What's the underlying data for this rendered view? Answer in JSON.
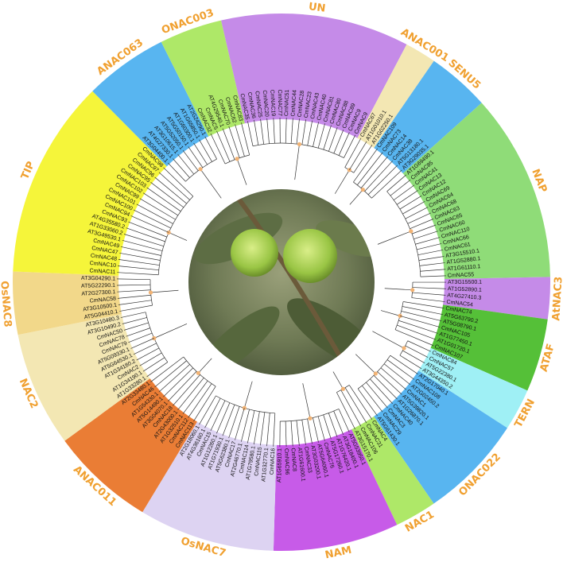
{
  "figure": {
    "center_photo": "chestnut-burrs-photo",
    "subfamilies": [
      {
        "name": "UN",
        "color": "#c58be8",
        "leaves": [
          "CmNAC35",
          "CmNAC36",
          "CmNAC25",
          "CmNAC20",
          "CmNAC19",
          "CmNAC77",
          "CmNAC51",
          "CmNAC44",
          "CmNAC28",
          "CmNAC23",
          "CmNAC43",
          "CmNAC40",
          "CmNAC81",
          "CmNAC80",
          "CmNAC88",
          "CmNAC89",
          "CmNAC9",
          "CmNAC9"
        ]
      },
      {
        "name": "ANAC001",
        "color": "#f3e7b3",
        "leaves": [
          "CmNAC67",
          "AT1G01010.1",
          "AT1G02250.1"
        ]
      },
      {
        "name": "SENU5",
        "color": "#58b5f0",
        "leaves": [
          "CmNAC109",
          "CmNAC73",
          "CmNAC14",
          "CmNAC38",
          "AT5G13180.1",
          "AT3G29035.1"
        ]
      },
      {
        "name": "NAP",
        "color": "#8fdc78",
        "leaves": [
          "AT1G69490.1",
          "CmNAC85",
          "CmNAC41",
          "CmNAC13",
          "CmNAC12",
          "CmNAC69",
          "CmNAC64",
          "CmNAC68",
          "CmNAC63",
          "CmNAC65",
          "CmNAC60",
          "CmNAC110",
          "CmNAC66",
          "CmNAC61",
          "AT3G15510.1",
          "AT1G52880.1",
          "AT1G61110.1",
          "CmNAC55"
        ]
      },
      {
        "name": "AtNAC3",
        "color": "#c58be8",
        "leaves": [
          "AT3G15500.1",
          "AT1G52890.1",
          "AT4G27410.3",
          "CmNAC54"
        ]
      },
      {
        "name": "ATAF",
        "color": "#55c038",
        "leaves": [
          "CmNAC74",
          "AT5G63790.2",
          "AT5G08790.1",
          "CmNAC105",
          "AT1G77450.1",
          "AT1G01720.1",
          "CmNAC107"
        ]
      },
      {
        "name": "TERN",
        "color": "#9ff0f5",
        "leaves": [
          "CmNAC84",
          "CmNAC57",
          "AT5G22380.1",
          "AT3G44350.2"
        ]
      },
      {
        "name": "ONAC022",
        "color": "#58b5f0",
        "leaves": [
          "AT2G17040.1",
          "CmNAC108",
          "AT2G02450.2",
          "CmNAC1",
          "AT5G39820.1",
          "AT1G26870.1",
          "CmNAC40",
          "CmNAC3",
          "CmNAC29",
          "AT5G61430.1"
        ]
      },
      {
        "name": "NAC1",
        "color": "#aee868",
        "leaves": [
          "CmNAC4",
          "CmNAC31",
          "CmNAC106",
          "AT3G15170.1"
        ]
      },
      {
        "name": "NAM",
        "color": "#c75be8",
        "leaves": [
          "AT5G53950.1",
          "AT3G18400.1",
          "AT1G76420.1",
          "AT5G17260.1",
          "CmNAC76",
          "AT5G64060.1",
          "AT3G03200.1",
          "CmNAC33",
          "AT1G61600.1",
          "CmNAC8",
          "CmNAC96",
          "AT1G65910.1"
        ]
      },
      {
        "name": "OsNAC7",
        "color": "#ddd3f2",
        "leaves": [
          "CmNAC16",
          "AT1G32770.1",
          "CmNAC115",
          "AT1G79580.1",
          "CmNAC114",
          "AT2G46770.1",
          "CmNAC17",
          "AT5G62380.1",
          "AT1G71930.1",
          "AT1G12260.1",
          "CmNAC15",
          "AT4G36160.1",
          "AT2G18060.1"
        ]
      },
      {
        "name": "ANAC011",
        "color": "#ea7d35",
        "leaves": [
          "CmNAC113",
          "CmNAC112",
          "AT1G32510.1",
          "AT2G43000.1",
          "CmNAC18",
          "AT3G04070.1",
          "AT5G14490.1",
          "AT1G54330.1",
          "CmNAC46",
          "AT2G33480.1"
        ]
      },
      {
        "name": "NAC2",
        "color": "#f3e7b3",
        "leaves": [
          "AT1G33280.1",
          "AT1G34190.1",
          "CmNAC2",
          "AT1G34180.2",
          "AT5G64530.1",
          "AT5G09330.1",
          "CmNAC79",
          "CmNAC78",
          "CmNAC50",
          "AT3G10490.2",
          "AT3G10480.3"
        ]
      },
      {
        "name": "OsNAC8",
        "color": "#f2d88a",
        "leaves": [
          "AT5G04410.1",
          "AT3G10500.1",
          "CmNAC58",
          "AT2G27300.1",
          "AT5G22290.1",
          "AT3G04290.1"
        ]
      },
      {
        "name": "TIP",
        "color": "#f5f53a",
        "leaves": [
          "CmNAC11",
          "CmNAC10",
          "CmNAC48",
          "CmNAC47",
          "CmNAC49",
          "AT3G49530.1",
          "AT1G33060.2",
          "AT4G35580.2",
          "CmNAC93",
          "CmNAC94",
          "CmNAC100",
          "CmNAC101",
          "CmNAC99",
          "CmNAC102",
          "CmNAC103",
          "CmNAC95",
          "CmNAC96",
          "CmNAC97",
          "CmNAC98"
        ]
      },
      {
        "name": "ANAC063",
        "color": "#58b5f0",
        "leaves": [
          "AT3G04400.1",
          "AT4G27330.1",
          "AT3G10615.1",
          "AT5G52050.1",
          "AT5G50150.1",
          "AT1G60300.1",
          "AT1G65850.1",
          "AT2G24290.1"
        ]
      },
      {
        "name": "ONAC003",
        "color": "#aee868",
        "leaves": [
          "CmNAC32",
          "CmNAC5",
          "AT4G29540.1",
          "CmNAC70",
          "CmNAC62",
          "CmNAC83"
        ]
      }
    ]
  }
}
